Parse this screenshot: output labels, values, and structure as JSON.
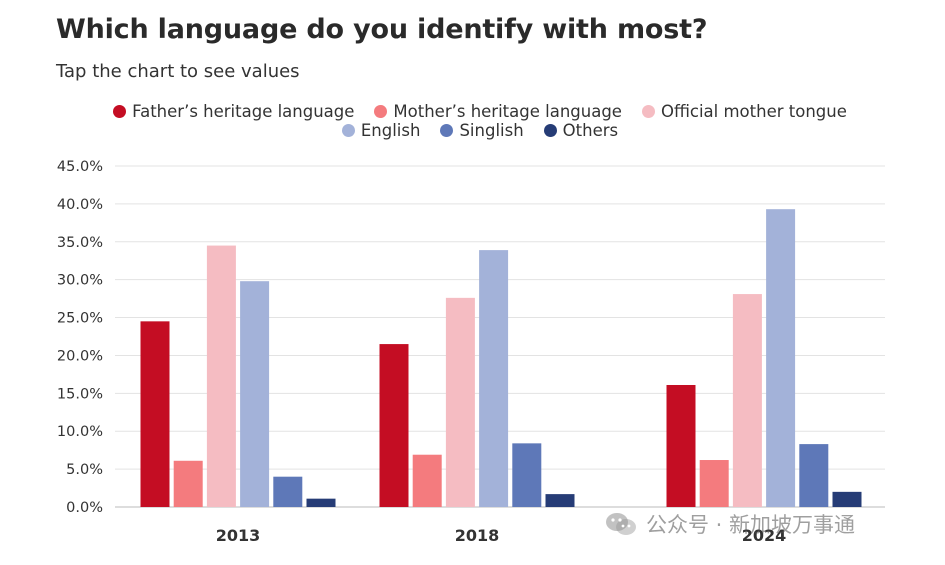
{
  "title": "Which language do you identify with most?",
  "subtitle": "Tap the chart to see values",
  "legend": [
    {
      "name": "Father’s heritage language",
      "color": "#c40d23"
    },
    {
      "name": "Mother’s heritage language",
      "color": "#f47b7e"
    },
    {
      "name": "Official mother tongue",
      "color": "#f5bcc2"
    },
    {
      "name": "English",
      "color": "#a3b2d9"
    },
    {
      "name": "Singlish",
      "color": "#5e78b8"
    },
    {
      "name": "Others",
      "color": "#263c76"
    }
  ],
  "watermark": {
    "text": "公众号 · 新加坡万事通",
    "icon": "wechat-icon"
  },
  "chart_data": {
    "type": "bar",
    "title": "Which language do you identify with most?",
    "subtitle": "Tap the chart to see values",
    "categories": [
      "2013",
      "2018",
      "2024"
    ],
    "series": [
      {
        "name": "Father’s heritage language",
        "color": "#c40d23",
        "values": [
          24.5,
          21.5,
          16.1
        ]
      },
      {
        "name": "Mother’s heritage language",
        "color": "#f47b7e",
        "values": [
          6.1,
          6.9,
          6.2
        ]
      },
      {
        "name": "Official mother tongue",
        "color": "#f5bcc2",
        "values": [
          34.5,
          27.6,
          28.1
        ]
      },
      {
        "name": "English",
        "color": "#a3b2d9",
        "values": [
          29.8,
          33.9,
          39.3
        ]
      },
      {
        "name": "Singlish",
        "color": "#5e78b8",
        "values": [
          4.0,
          8.4,
          8.3
        ]
      },
      {
        "name": "Others",
        "color": "#263c76",
        "values": [
          1.1,
          1.7,
          2.0
        ]
      }
    ],
    "ylim": [
      0,
      45
    ],
    "yticks": [
      "0.0%",
      "5.0%",
      "10.0%",
      "15.0%",
      "20.0%",
      "25.0%",
      "30.0%",
      "35.0%",
      "40.0%",
      "45.0%"
    ],
    "grid": true,
    "legend_position": "top"
  }
}
